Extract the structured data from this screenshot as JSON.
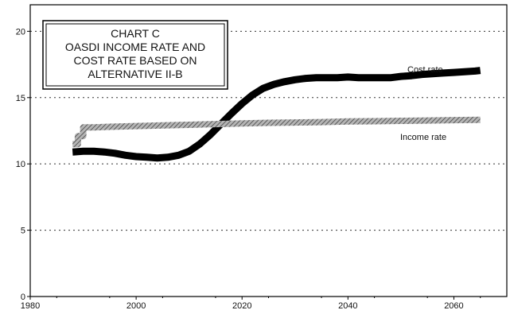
{
  "chart_data": {
    "type": "line",
    "title_lines": [
      "CHART C",
      "OASDI INCOME RATE AND",
      "COST RATE BASED ON",
      "ALTERNATIVE II-B"
    ],
    "xlabel": "",
    "ylabel": "",
    "xlim": [
      1980,
      2070
    ],
    "ylim": [
      0,
      22
    ],
    "x_ticks": [
      1980,
      2000,
      2020,
      2040,
      2060
    ],
    "y_ticks": [
      0,
      5,
      10,
      15,
      20
    ],
    "grid": "horizontal dotted at y ticks",
    "legend": "labels placed next to series lines",
    "series": [
      {
        "name": "Cost rate",
        "color": "#000000",
        "style": "thick solid",
        "points": [
          [
            1988,
            10.9
          ],
          [
            1990,
            10.95
          ],
          [
            1992,
            10.95
          ],
          [
            1994,
            10.9
          ],
          [
            1996,
            10.8
          ],
          [
            1998,
            10.65
          ],
          [
            2000,
            10.55
          ],
          [
            2002,
            10.5
          ],
          [
            2004,
            10.45
          ],
          [
            2006,
            10.5
          ],
          [
            2008,
            10.65
          ],
          [
            2010,
            10.95
          ],
          [
            2012,
            11.5
          ],
          [
            2014,
            12.2
          ],
          [
            2016,
            13.0
          ],
          [
            2018,
            13.8
          ],
          [
            2020,
            14.55
          ],
          [
            2022,
            15.2
          ],
          [
            2024,
            15.7
          ],
          [
            2026,
            16.0
          ],
          [
            2028,
            16.2
          ],
          [
            2030,
            16.35
          ],
          [
            2032,
            16.45
          ],
          [
            2034,
            16.5
          ],
          [
            2036,
            16.5
          ],
          [
            2038,
            16.5
          ],
          [
            2040,
            16.55
          ],
          [
            2042,
            16.5
          ],
          [
            2044,
            16.5
          ],
          [
            2046,
            16.5
          ],
          [
            2048,
            16.5
          ],
          [
            2050,
            16.6
          ],
          [
            2052,
            16.65
          ],
          [
            2054,
            16.75
          ],
          [
            2056,
            16.8
          ],
          [
            2058,
            16.85
          ],
          [
            2060,
            16.9
          ],
          [
            2062,
            16.95
          ],
          [
            2064,
            17.0
          ],
          [
            2065,
            17.05
          ]
        ]
      },
      {
        "name": "Income rate",
        "color": "#8a8a8a",
        "style": "thick hatched step",
        "points": [
          [
            1988,
            11.5
          ],
          [
            1989,
            11.5
          ],
          [
            1989,
            12.1
          ],
          [
            1990,
            12.1
          ],
          [
            1990,
            12.75
          ],
          [
            1992,
            12.75
          ],
          [
            1995,
            12.8
          ],
          [
            2000,
            12.85
          ],
          [
            2005,
            12.9
          ],
          [
            2010,
            12.95
          ],
          [
            2015,
            13.0
          ],
          [
            2020,
            13.05
          ],
          [
            2025,
            13.1
          ],
          [
            2030,
            13.12
          ],
          [
            2035,
            13.15
          ],
          [
            2040,
            13.2
          ],
          [
            2045,
            13.22
          ],
          [
            2050,
            13.25
          ],
          [
            2055,
            13.27
          ],
          [
            2060,
            13.3
          ],
          [
            2065,
            13.32
          ]
        ]
      }
    ]
  }
}
